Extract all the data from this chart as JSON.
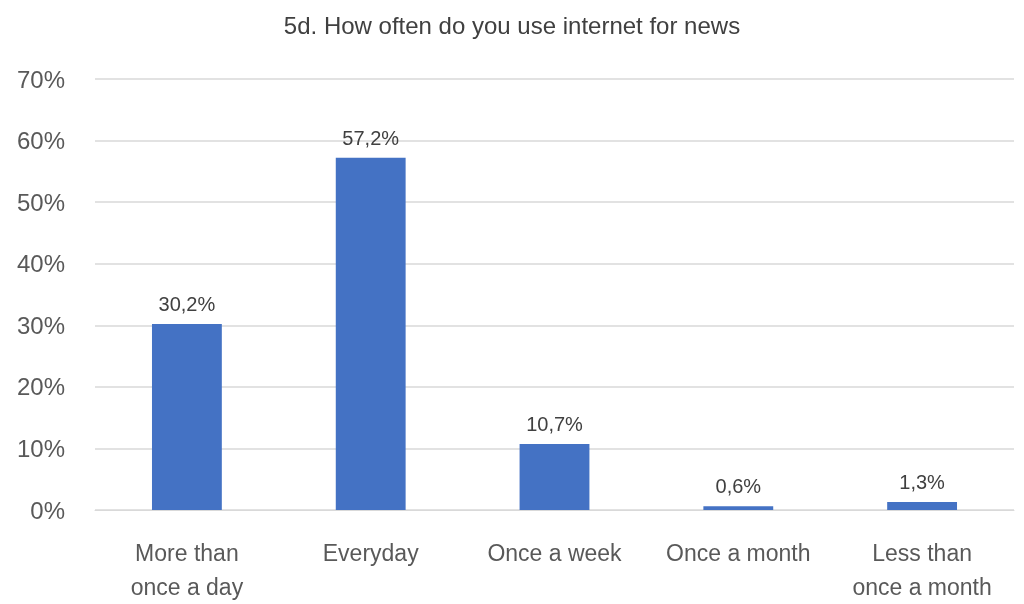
{
  "chart_data": {
    "type": "bar",
    "title": "5d. How often do you use internet for news",
    "categories": [
      "More than once a day",
      "Everyday",
      "Once a week",
      "Once a month",
      "Less than once a month"
    ],
    "values": [
      30.2,
      57.2,
      10.7,
      0.6,
      1.3
    ],
    "value_labels": [
      "30,2%",
      "57,2%",
      "10,7%",
      "0,6%",
      "1,3%"
    ],
    "color": "#4472c4",
    "ylim": [
      0,
      70
    ],
    "yticks": [
      {
        "value": 0,
        "label": "0%"
      },
      {
        "value": 10,
        "label": "10%"
      },
      {
        "value": 20,
        "label": "20%"
      },
      {
        "value": 30,
        "label": "30%"
      },
      {
        "value": 40,
        "label": "40%"
      },
      {
        "value": 50,
        "label": "50%"
      },
      {
        "value": 60,
        "label": "60%"
      },
      {
        "value": 70,
        "label": "70%"
      }
    ],
    "grid": "y"
  }
}
